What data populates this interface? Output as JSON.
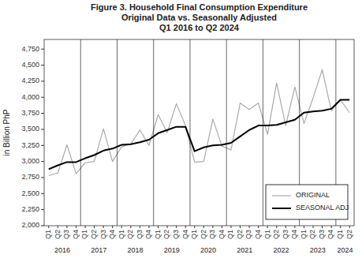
{
  "chart_data": {
    "type": "line",
    "title": "Figure 3.  Household Final Consumption Expenditure\nOriginal Data vs. Seasonally Adjusted\nQ1 2016 to Q2 2024",
    "y_label": "in Billion PhP",
    "categories": [
      "Q1",
      "Q2",
      "Q3",
      "Q4",
      "Q1",
      "Q2",
      "Q3",
      "Q4",
      "Q1",
      "Q2",
      "Q3",
      "Q4",
      "Q1",
      "Q2",
      "Q3",
      "Q4",
      "Q1",
      "Q2",
      "Q3",
      "Q4",
      "Q1",
      "Q2",
      "Q3",
      "Q4",
      "Q1",
      "Q2",
      "Q3",
      "Q4",
      "Q1",
      "Q2",
      "Q3",
      "Q4",
      "Q1",
      "Q2"
    ],
    "series": [
      {
        "name": "ORIGINAL",
        "color": "#aaaaaa",
        "values": [
          2780,
          2820,
          3260,
          2810,
          2980,
          3000,
          3510,
          3000,
          3230,
          3270,
          3490,
          3250,
          3730,
          3450,
          3900,
          3560,
          2990,
          3000,
          3660,
          3240,
          3180,
          3910,
          3810,
          3910,
          3420,
          4220,
          3560,
          4160,
          3590,
          3990,
          4430,
          3790,
          3960,
          3760
        ]
      },
      {
        "name": "SEASONAL ADJ",
        "color": "#000000",
        "values": [
          2880,
          2940,
          2990,
          2990,
          3050,
          3100,
          3170,
          3200,
          3260,
          3270,
          3300,
          3340,
          3440,
          3490,
          3540,
          3540,
          3160,
          3220,
          3250,
          3260,
          3290,
          3390,
          3490,
          3560,
          3560,
          3570,
          3610,
          3650,
          3760,
          3780,
          3790,
          3820,
          3960,
          3960
        ]
      }
    ],
    "annotations": [
      {
        "text": "2016",
        "x": 1.5
      },
      {
        "text": "2017",
        "x": 5.5
      },
      {
        "text": "2018",
        "x": 9.5
      },
      {
        "text": "2019",
        "x": 13.5
      },
      {
        "text": "2020",
        "x": 17.5
      },
      {
        "text": "2021",
        "x": 21.5
      },
      {
        "text": "2022",
        "x": 25.5
      },
      {
        "text": "2023",
        "x": 29.5
      },
      {
        "text": "2024",
        "x": 32.5
      }
    ],
    "ylim": [
      2000,
      4900
    ],
    "yticks": [
      {
        "value": 2000,
        "label": "2,000"
      },
      {
        "value": 2250,
        "label": "2,250"
      },
      {
        "value": 2500,
        "label": "2,500"
      },
      {
        "value": 2750,
        "label": "2,750"
      },
      {
        "value": 3000,
        "label": "3,000"
      },
      {
        "value": 3250,
        "label": "3,250"
      },
      {
        "value": 3500,
        "label": "3,500"
      },
      {
        "value": 3750,
        "label": "3,750"
      },
      {
        "value": 4000,
        "label": "4,000"
      },
      {
        "value": 4250,
        "label": "4,250"
      },
      {
        "value": 4500,
        "label": "4,500"
      },
      {
        "value": 4750,
        "label": "4,750"
      }
    ],
    "grid": false,
    "legend": "lower right"
  }
}
